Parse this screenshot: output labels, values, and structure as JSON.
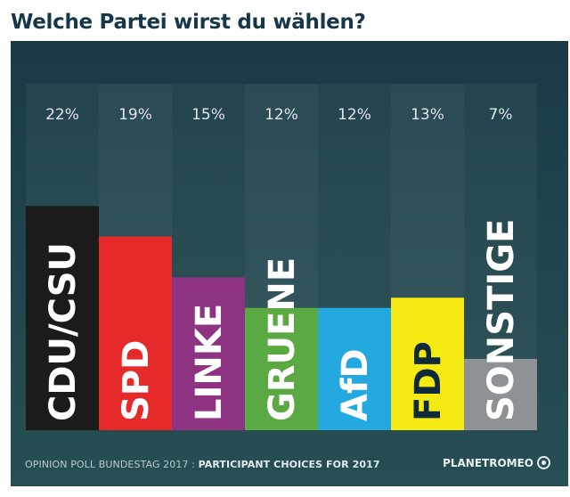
{
  "chart_data": {
    "type": "bar",
    "title": "Welche Partei wirst du wählen?",
    "categories": [
      "CDU/CSU",
      "SPD",
      "LINKE",
      "GRUENE",
      "AfD",
      "FDP",
      "SONSTIGE"
    ],
    "values": [
      22,
      19,
      15,
      12,
      12,
      13,
      7
    ],
    "value_labels": [
      "22%",
      "19%",
      "15%",
      "12%",
      "12%",
      "13%",
      "7%"
    ],
    "colors": [
      "#1b1b1b",
      "#e62a2a",
      "#8d3381",
      "#5aa943",
      "#23a8e0",
      "#f5ea13",
      "#8e9294"
    ],
    "label_dark": [
      false,
      false,
      false,
      false,
      false,
      true,
      false
    ],
    "unit": "%",
    "ylim": [
      0,
      34
    ],
    "xlabel": "",
    "ylabel": ""
  },
  "footer": {
    "source_prefix": "OPINION POLL BUNDESTAG 2017 : ",
    "source_strong": "PARTICIPANT CHOICES FOR 2017",
    "brand": "PLANETROMEO"
  }
}
